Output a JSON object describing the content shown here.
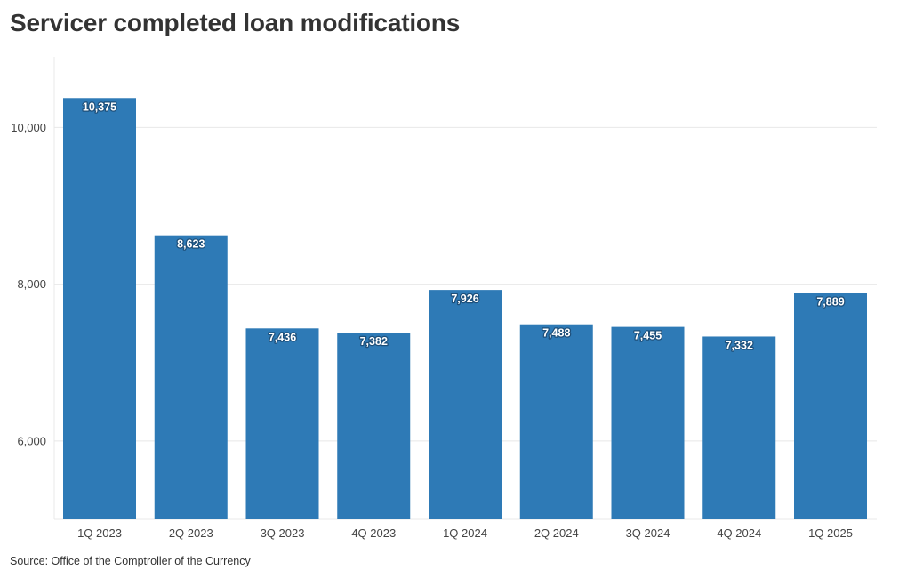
{
  "source": "Source: Office of the Comptroller of the Currency",
  "colors": {
    "bar": "#2e7ab6",
    "grid": "#e8e8e8",
    "text": "#333333"
  },
  "chart_data": {
    "type": "bar",
    "title": "Servicer completed loan modifications",
    "xlabel": "",
    "ylabel": "",
    "categories": [
      "1Q 2023",
      "2Q 2023",
      "3Q 2023",
      "4Q 2023",
      "1Q 2024",
      "2Q 2024",
      "3Q 2024",
      "4Q 2024",
      "1Q 2025"
    ],
    "values": [
      10375,
      8623,
      7436,
      7382,
      7926,
      7488,
      7455,
      7332,
      7889
    ],
    "value_labels": [
      "10,375",
      "8,623",
      "7,436",
      "7,382",
      "7,926",
      "7,488",
      "7,455",
      "7,332",
      "7,889"
    ],
    "yticks": [
      6000,
      8000,
      10000
    ],
    "ytick_labels": [
      "6,000",
      "8,000",
      "10,000"
    ],
    "ylim": [
      5000,
      10900
    ],
    "grid": true,
    "legend": "none"
  }
}
